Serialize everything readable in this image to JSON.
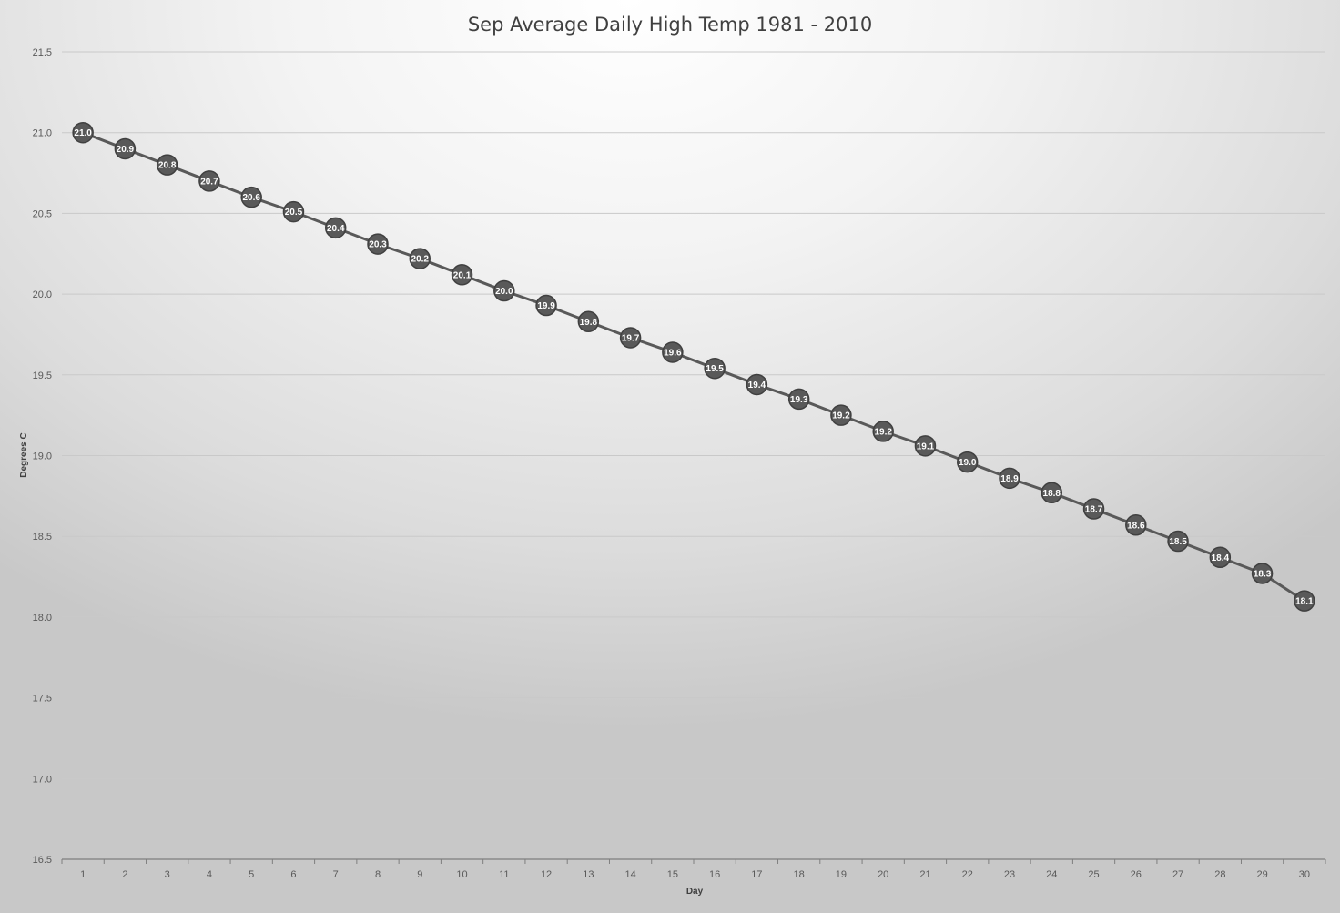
{
  "chart_data": {
    "type": "line",
    "title": "Sep Average Daily High Temp 1981 - 2010",
    "xlabel": "Day",
    "ylabel": "Degrees C",
    "ylim": [
      16.5,
      21.5
    ],
    "ytick_step": 0.5,
    "ytick_labels": [
      "16.5",
      "17.0",
      "17.5",
      "18.0",
      "18.5",
      "19.0",
      "19.5",
      "20.0",
      "20.5",
      "21.0",
      "21.5"
    ],
    "grid": true,
    "legend": "none",
    "x": [
      1,
      2,
      3,
      4,
      5,
      6,
      7,
      8,
      9,
      10,
      11,
      12,
      13,
      14,
      15,
      16,
      17,
      18,
      19,
      20,
      21,
      22,
      23,
      24,
      25,
      26,
      27,
      28,
      29,
      30
    ],
    "values": [
      21.0,
      20.9,
      20.8,
      20.7,
      20.6,
      20.51,
      20.41,
      20.31,
      20.22,
      20.12,
      20.02,
      19.93,
      19.83,
      19.73,
      19.64,
      19.54,
      19.44,
      19.35,
      19.25,
      19.15,
      19.06,
      18.96,
      18.86,
      18.77,
      18.67,
      18.57,
      18.47,
      18.37,
      18.27,
      18.1
    ],
    "data_labels": [
      "21.0",
      "20.9",
      "20.8",
      "20.7",
      "20.6",
      "20.5",
      "20.4",
      "20.3",
      "20.2",
      "20.1",
      "20.0",
      "19.9",
      "19.8",
      "19.7",
      "19.6",
      "19.5",
      "19.4",
      "19.3",
      "19.2",
      "19.2",
      "19.1",
      "19.0",
      "18.9",
      "18.8",
      "18.7",
      "18.6",
      "18.5",
      "18.4",
      "18.3",
      "18.1"
    ],
    "colors": {
      "line": "#595959",
      "marker": "#595959",
      "marker_stroke": "#404040",
      "gridline": "#c9c9c9",
      "axis": "#7f7f7f"
    }
  }
}
